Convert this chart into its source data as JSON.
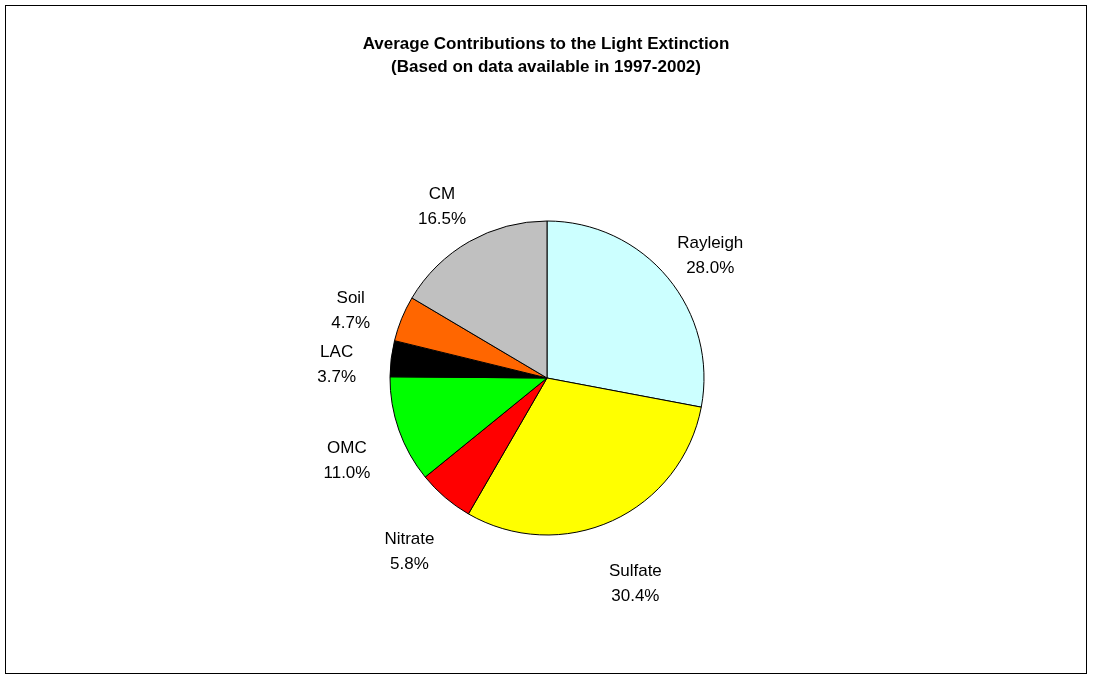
{
  "chart_data": {
    "type": "pie",
    "title": "Average Contributions to the Light Extinction",
    "subtitle": "(Based on data available in 1997-2002)",
    "categories": [
      "Rayleigh",
      "Sulfate",
      "Nitrate",
      "OMC",
      "LAC",
      "Soil",
      "CM"
    ],
    "values": [
      28.0,
      30.4,
      5.8,
      11.0,
      3.7,
      4.7,
      16.5
    ],
    "value_labels": [
      "28.0%",
      "30.4%",
      "5.8%",
      "11.0%",
      "3.7%",
      "4.7%",
      "16.5%"
    ],
    "colors": [
      "#ccffff",
      "#ffff00",
      "#ff0000",
      "#00ff00",
      "#000000",
      "#ff6600",
      "#c0c0c0"
    ],
    "legend": false
  }
}
